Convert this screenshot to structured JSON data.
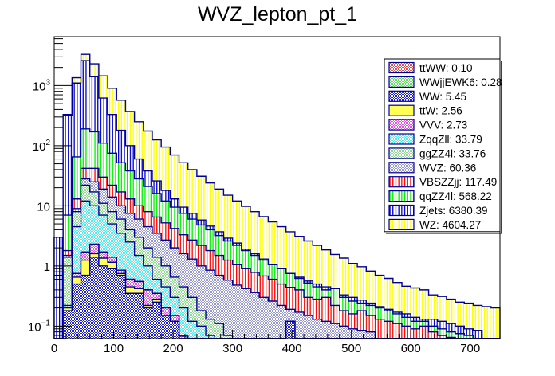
{
  "chart_data": {
    "type": "bar",
    "subtype": "stacked-histogram",
    "title": "WVZ_lepton_pt_1",
    "xlabel": "",
    "ylabel": "",
    "xlim": [
      0,
      750
    ],
    "ylim": [
      0.062,
      6500
    ],
    "yscale": "log",
    "bin_width": 15,
    "x_ticks": [
      0,
      100,
      200,
      300,
      400,
      500,
      600,
      700
    ],
    "x_tick_labels": [
      "0",
      "100",
      "200",
      "300",
      "400",
      "500",
      "600",
      "700"
    ],
    "y_ticks": [
      0.1,
      1,
      10,
      100,
      1000
    ],
    "y_tick_labels": [
      {
        "base": "10",
        "exp": "−1"
      },
      {
        "base": "1",
        "exp": ""
      },
      {
        "base": "10",
        "exp": ""
      },
      {
        "base": "10",
        "exp": "2"
      },
      {
        "base": "10",
        "exp": "3"
      }
    ],
    "grid": false,
    "legend_position": "top-right",
    "series_order_bottom_to_top": [
      "WW",
      "ttW",
      "VVV",
      "ttWW",
      "WWjjEWK6",
      "ZqqZll",
      "ggZZ4l",
      "WVZ",
      "VBSZZjj",
      "qqZZ4l",
      "Zjets",
      "WZ"
    ],
    "legend": [
      {
        "name": "ttWW",
        "label": "ttWW: 0.10",
        "color": "#e05050",
        "pattern": "checker"
      },
      {
        "name": "WWjjEWK6",
        "label": "WWjjEWK6: 0.28",
        "color": "#5ce05c",
        "pattern": "checker"
      },
      {
        "name": "WW",
        "label": "WW: 5.45",
        "color": "#2020c8",
        "pattern": "checker"
      },
      {
        "name": "ttW",
        "label": "ttW: 2.56",
        "color": "#ffff55",
        "pattern": "solid"
      },
      {
        "name": "VVV",
        "label": "VVV: 2.73",
        "color": "#e055e0",
        "pattern": "checker"
      },
      {
        "name": "ZqqZll",
        "label": "ZqqZll: 33.79",
        "color": "#55e8e8",
        "pattern": "checker"
      },
      {
        "name": "ggZZ4l",
        "label": "ggZZ4l: 33.76",
        "color": "#90d890",
        "pattern": "checker"
      },
      {
        "name": "WVZ",
        "label": "WVZ: 60.36",
        "color": "#9898d0",
        "pattern": "checker"
      },
      {
        "name": "VBSZZjj",
        "label": "VBSZZjj: 117.49",
        "color": "#ff0000",
        "pattern": "vlines"
      },
      {
        "name": "qqZZ4l",
        "label": "qqZZ4l: 568.22",
        "color": "#00ee00",
        "pattern": "vlines"
      },
      {
        "name": "Zjets",
        "label": "Zjets: 6380.39",
        "color": "#0000cc",
        "pattern": "vlines"
      },
      {
        "name": "WZ",
        "label": "WZ: 4604.27",
        "color": "#ffff00",
        "pattern": "vlines"
      }
    ],
    "stack_tops": {
      "WW": [
        0.062,
        0.18,
        0.5,
        0.7,
        1.4,
        1.0,
        0.9,
        0.7,
        0.35,
        0.35,
        0.2,
        0.25,
        0.15,
        0.12,
        0.062,
        0.062,
        0.062,
        0.062,
        0.062,
        0.062,
        0.062,
        0.062,
        0.062,
        0.062,
        0.062,
        0.062,
        0.12,
        0.062,
        0.062,
        0.062,
        0.062,
        0.062,
        0.062,
        0.062,
        0.062,
        0.062,
        0.062,
        0.062,
        0.062,
        0.062,
        0.062,
        0.062,
        0.062,
        0.062,
        0.062,
        0.062,
        0.062,
        0.062,
        0.062,
        0.062
      ],
      "ttW": [
        0.062,
        0.2,
        0.65,
        1.25,
        1.6,
        1.35,
        1.15,
        0.75,
        0.45,
        0.42,
        0.22,
        0.28,
        0.15,
        0.12,
        0.062,
        0.062,
        0.062,
        0.062,
        0.062,
        0.062,
        0.062,
        0.062,
        0.062,
        0.062,
        0.062,
        0.062,
        0.12,
        0.062,
        0.062,
        0.062,
        0.062,
        0.062,
        0.062,
        0.062,
        0.062,
        0.062,
        0.062,
        0.062,
        0.062,
        0.062,
        0.062,
        0.062,
        0.062,
        0.062,
        0.062,
        0.062,
        0.062,
        0.062,
        0.062,
        0.062
      ],
      "VVV": [
        0.062,
        0.2,
        0.75,
        1.7,
        2.3,
        1.7,
        1.4,
        0.85,
        0.6,
        0.55,
        0.4,
        0.35,
        0.2,
        0.15,
        0.068,
        0.062,
        0.062,
        0.062,
        0.062,
        0.062,
        0.062,
        0.062,
        0.062,
        0.062,
        0.062,
        0.062,
        0.12,
        0.062,
        0.062,
        0.062,
        0.062,
        0.062,
        0.062,
        0.062,
        0.062,
        0.062,
        0.062,
        0.062,
        0.062,
        0.062,
        0.062,
        0.062,
        0.062,
        0.062,
        0.062,
        0.062,
        0.062,
        0.062,
        0.062,
        0.062
      ],
      "ttWW": [
        0.062,
        0.2,
        0.75,
        1.7,
        2.3,
        1.7,
        1.4,
        0.85,
        0.6,
        0.55,
        0.4,
        0.35,
        0.2,
        0.15,
        0.068,
        0.062,
        0.062,
        0.062,
        0.062,
        0.062,
        0.062,
        0.062,
        0.062,
        0.062,
        0.062,
        0.062,
        0.12,
        0.062,
        0.062,
        0.062,
        0.062,
        0.062,
        0.062,
        0.062,
        0.062,
        0.062,
        0.062,
        0.062,
        0.062,
        0.062,
        0.062,
        0.062,
        0.062,
        0.062,
        0.062,
        0.062,
        0.062,
        0.062,
        0.062,
        0.062
      ],
      "WWjjEWK6": [
        0.062,
        0.2,
        0.75,
        1.7,
        2.3,
        1.7,
        1.4,
        0.85,
        0.6,
        0.55,
        0.4,
        0.35,
        0.2,
        0.15,
        0.068,
        0.062,
        0.062,
        0.062,
        0.062,
        0.062,
        0.062,
        0.062,
        0.062,
        0.062,
        0.062,
        0.062,
        0.12,
        0.062,
        0.062,
        0.062,
        0.062,
        0.062,
        0.062,
        0.062,
        0.062,
        0.062,
        0.062,
        0.062,
        0.062,
        0.062,
        0.062,
        0.062,
        0.062,
        0.062,
        0.062,
        0.062,
        0.062,
        0.062,
        0.062,
        0.062
      ],
      "ZqqZll": [
        0.062,
        0.22,
        4.5,
        12,
        10,
        7,
        5,
        3.5,
        2.5,
        1.5,
        1.0,
        0.6,
        0.45,
        0.3,
        0.2,
        0.12,
        0.1,
        0.07,
        0.062,
        0.062,
        0.062,
        0.062,
        0.062,
        0.062,
        0.062,
        0.062,
        0.062,
        0.062,
        0.062,
        0.062,
        0.062,
        0.062,
        0.062,
        0.062,
        0.062,
        0.062,
        0.062,
        0.062,
        0.062,
        0.062,
        0.062,
        0.062,
        0.062,
        0.062,
        0.062,
        0.062,
        0.062,
        0.062,
        0.062,
        0.062
      ],
      "ggZZ4l": [
        0.062,
        1.4,
        8,
        22,
        17,
        11,
        8,
        6,
        4,
        3,
        2,
        1.4,
        1.0,
        0.65,
        0.45,
        0.3,
        0.18,
        0.13,
        0.11,
        0.07,
        0.062,
        0.062,
        0.062,
        0.062,
        0.062,
        0.062,
        0.062,
        0.062,
        0.062,
        0.062,
        0.062,
        0.062,
        0.062,
        0.062,
        0.062,
        0.062,
        0.062,
        0.062,
        0.062,
        0.062,
        0.062,
        0.062,
        0.062,
        0.062,
        0.062,
        0.062,
        0.062,
        0.062,
        0.062,
        0.062
      ],
      "WVZ": [
        0.062,
        1.5,
        9,
        28,
        25,
        19,
        14,
        10,
        7.5,
        6,
        4.5,
        3.5,
        2.7,
        2.0,
        1.6,
        1.3,
        1.0,
        0.85,
        0.7,
        0.58,
        0.48,
        0.42,
        0.36,
        0.3,
        0.26,
        0.22,
        0.19,
        0.17,
        0.15,
        0.13,
        0.12,
        0.11,
        0.1,
        0.09,
        0.085,
        0.08,
        0.062,
        0.062,
        0.062,
        0.062,
        0.062,
        0.062,
        0.062,
        0.062,
        0.062,
        0.062,
        0.062,
        0.062,
        0.062,
        0.062
      ],
      "VBSZZjj": [
        0.062,
        1.8,
        13,
        42,
        42,
        30,
        22,
        17,
        13,
        10,
        8,
        6.5,
        5.2,
        4.2,
        3.3,
        2.7,
        2.2,
        1.8,
        1.5,
        1.25,
        1.05,
        0.9,
        0.78,
        0.68,
        0.6,
        0.5,
        0.44,
        0.4,
        0.3,
        0.28,
        0.3,
        0.22,
        0.18,
        0.16,
        0.18,
        0.15,
        0.13,
        0.12,
        0.11,
        0.1,
        0.09,
        0.1,
        0.08,
        0.07,
        0.065,
        0.062,
        0.062,
        0.062,
        0.062,
        0.062
      ],
      "qqZZ4l": [
        0.062,
        7,
        65,
        190,
        170,
        110,
        75,
        52,
        38,
        28,
        21,
        16,
        12,
        9.5,
        7.5,
        6,
        4.8,
        4,
        3.2,
        2.6,
        2.2,
        1.8,
        1.5,
        1.25,
        1.05,
        0.9,
        0.75,
        0.62,
        0.52,
        0.45,
        0.4,
        0.42,
        0.3,
        0.26,
        0.24,
        0.22,
        0.2,
        0.18,
        0.16,
        0.14,
        0.12,
        0.12,
        0.1,
        0.09,
        0.08,
        0.075,
        0.07,
        0.062,
        0.062,
        0.062
      ],
      "Zjets": [
        3.0,
        320,
        1100,
        2600,
        1400,
        620,
        330,
        180,
        100,
        60,
        38,
        26,
        18,
        13,
        9.5,
        7.5,
        5.8,
        4.6,
        3.7,
        2.9,
        2.4,
        1.9,
        1.6,
        1.3,
        1.05,
        0.9,
        0.75,
        0.65,
        0.56,
        0.5,
        0.45,
        0.38,
        0.33,
        0.3,
        0.27,
        0.24,
        0.21,
        0.19,
        0.17,
        0.16,
        0.14,
        0.13,
        0.13,
        0.12,
        0.11,
        0.1,
        0.09,
        0.085,
        0.062,
        0.062
      ],
      "WZ": [
        3.0,
        330,
        1350,
        3300,
        2300,
        1450,
        900,
        570,
        370,
        250,
        175,
        125,
        95,
        70,
        52,
        40,
        31,
        24,
        19,
        15,
        12,
        9.8,
        8,
        6.6,
        5.4,
        4.5,
        3.7,
        3.1,
        2.6,
        2.2,
        1.85,
        1.55,
        1.35,
        1.1,
        0.97,
        0.82,
        0.7,
        0.62,
        0.53,
        0.46,
        0.43,
        0.4,
        0.33,
        0.31,
        0.28,
        0.25,
        0.24,
        0.22,
        0.21,
        0.2
      ]
    }
  }
}
